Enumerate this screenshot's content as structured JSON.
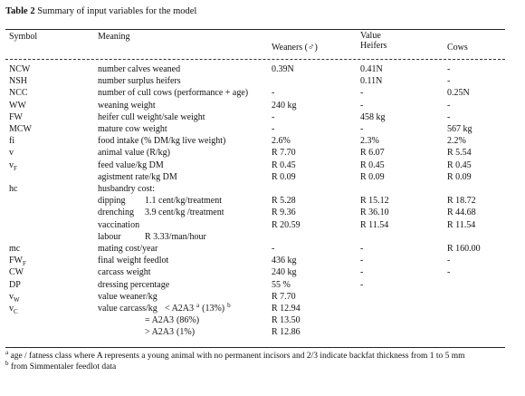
{
  "header": {
    "label": "Table 2",
    "title": "Summary of input variables for the model"
  },
  "table": {
    "columns": {
      "symbol": "Symbol",
      "meaning": "Meaning",
      "group": "Value",
      "weaners": "Weaners (♂)",
      "heifers": "Heifers",
      "cows": "Cows"
    },
    "rows": [
      {
        "symbol": "NCW",
        "meaning": "number calves weaned",
        "weaners": "0.39N",
        "heifers": "0.41N",
        "cows": "-"
      },
      {
        "symbol": "NSH",
        "meaning": "number surplus heifers",
        "heifers": "0.11N",
        "cows": "-"
      },
      {
        "symbol": "NCC",
        "meaning": "number of cull cows (performance + age)",
        "weaners": "-",
        "heifers": "-",
        "cows": "0.25N"
      },
      {
        "symbol": "WW",
        "meaning": "weaning weight",
        "weaners": "240 kg",
        "heifers": "-",
        "cows": "-"
      },
      {
        "symbol": "FW",
        "meaning": "heifer cull weight/sale weight",
        "weaners": "-",
        "heifers": "458 kg",
        "cows": "-"
      },
      {
        "symbol": "MCW",
        "meaning": "mature cow weight",
        "weaners": "-",
        "heifers": "-",
        "cows": "567 kg"
      },
      {
        "symbol": "fi",
        "meaning": "food intake (% DM/kg live weight)",
        "weaners": "2.6%",
        "heifers": "2.3%",
        "cows": "2.2%"
      },
      {
        "symbol": "v",
        "meaning": "animal value (R/kg)",
        "weaners": "R 7.70",
        "heifers": "R 6.07",
        "cows": "R 5.54"
      },
      {
        "symbol": "v",
        "sub": "F",
        "meaning": "feed value/kg DM",
        "weaners": "R 0.45",
        "heifers": "R 0.45",
        "cows": "R 0.45"
      },
      {
        "meaning": "agistment rate/kg DM",
        "weaners": "R 0.09",
        "heifers": "R 0.09",
        "cows": "R 0.09"
      },
      {
        "symbol": "hc",
        "meaning": "husbandry cost:"
      },
      {
        "meaning": "dipping",
        "detail": [
          "1.1 cent/kg/treatment"
        ],
        "weaners": "R 5.28",
        "heifers": "R 15.12",
        "cows": "R 18.72"
      },
      {
        "meaning": "drenching",
        "detail": [
          "3.9 cent/kg /treatment"
        ],
        "weaners": "R 9.36",
        "heifers": "R 36.10",
        "cows": "R 44.68"
      },
      {
        "meaning": "vaccination",
        "weaners": "R 20.59",
        "heifers": "R 11.54",
        "cows": "R 11.54"
      },
      {
        "meaning": "labour",
        "detail": [
          "R 3.33/man/hour"
        ]
      },
      {
        "symbol": "mc",
        "meaning": "mating cost/year",
        "weaners": "-",
        "heifers": "-",
        "cows": "R 160.00"
      },
      {
        "symbol": "FW",
        "sub": "F",
        "meaning": "final weight feedlot",
        "weaners": "436 kg",
        "heifers": "-",
        "cows": "-"
      },
      {
        "symbol": "CW",
        "meaning": "carcass weight",
        "weaners": "240 kg",
        "heifers": "-",
        "cows": "-"
      },
      {
        "symbol": "DP",
        "meaning": "dressing percentage",
        "weaners": "55 %",
        "heifers": "-"
      },
      {
        "symbol": "v",
        "sub": "W",
        "meaning": "value weaner/kg",
        "weaners": "R 7.70"
      },
      {
        "symbol": "v",
        "sub": "C",
        "meaning": "value carcass/kg",
        "detail": [
          "< A2A3",
          {
            "sup": "a"
          },
          "(13%)",
          {
            "sup": "b"
          }
        ],
        "weaners": "R 12.94"
      },
      {
        "detail": [
          "= A2A3",
          "(86%)"
        ],
        "weaners": "R 13.50"
      },
      {
        "detail": [
          "> A2A3",
          "(1%)"
        ],
        "weaners": "R 12.86"
      }
    ]
  },
  "footnotes": [
    {
      "mark": "a",
      "text": "age / fatness class where A represents a young animal with no permanent incisors and 2/3 indicate backfat thickness from 1 to 5 mm"
    },
    {
      "mark": "b",
      "text": "from Simmentaler feedlot data"
    }
  ]
}
